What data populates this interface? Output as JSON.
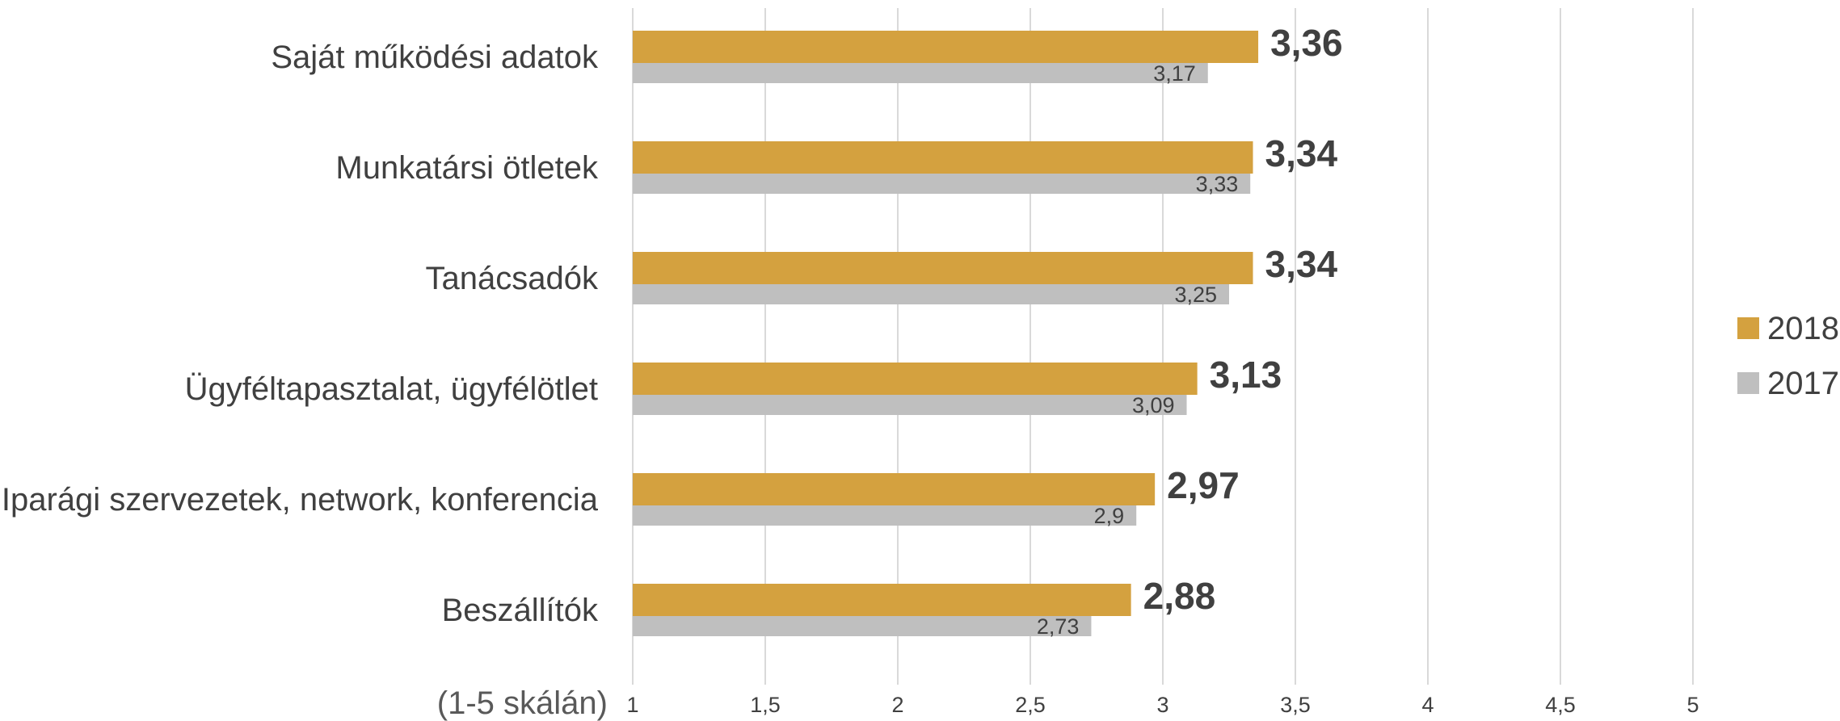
{
  "chart_data": {
    "type": "bar",
    "orientation": "horizontal",
    "categories": [
      "Saját működési adatok",
      "Munkatársi ötletek",
      "Tanácsadók",
      "Ügyféltapasztalat, ügyfélötlet",
      "Iparági szervezetek, network, konferencia",
      "Beszállítók"
    ],
    "series": [
      {
        "name": "2018",
        "color": "#D4A13F",
        "values": [
          3.36,
          3.34,
          3.34,
          3.13,
          2.97,
          2.88
        ],
        "labels": [
          "3,36",
          "3,34",
          "3,34",
          "3,13",
          "2,97",
          "2,88"
        ]
      },
      {
        "name": "2017",
        "color": "#BFBFBF",
        "values": [
          3.17,
          3.33,
          3.25,
          3.09,
          2.9,
          2.73
        ],
        "labels": [
          "3,17",
          "3,33",
          "3,25",
          "3,09",
          "2,9",
          "2,73"
        ]
      }
    ],
    "xlim": [
      1,
      5
    ],
    "ticks": [
      1,
      1.5,
      2,
      2.5,
      3,
      3.5,
      4,
      4.5,
      5
    ],
    "tick_labels": [
      "1",
      "1,5",
      "2",
      "2,5",
      "3",
      "3,5",
      "4",
      "4,5",
      "5"
    ],
    "axis_note": "(1-5 skálán)",
    "grid": true,
    "gridline_color": "#D9D9D9",
    "legend_position": "right"
  }
}
